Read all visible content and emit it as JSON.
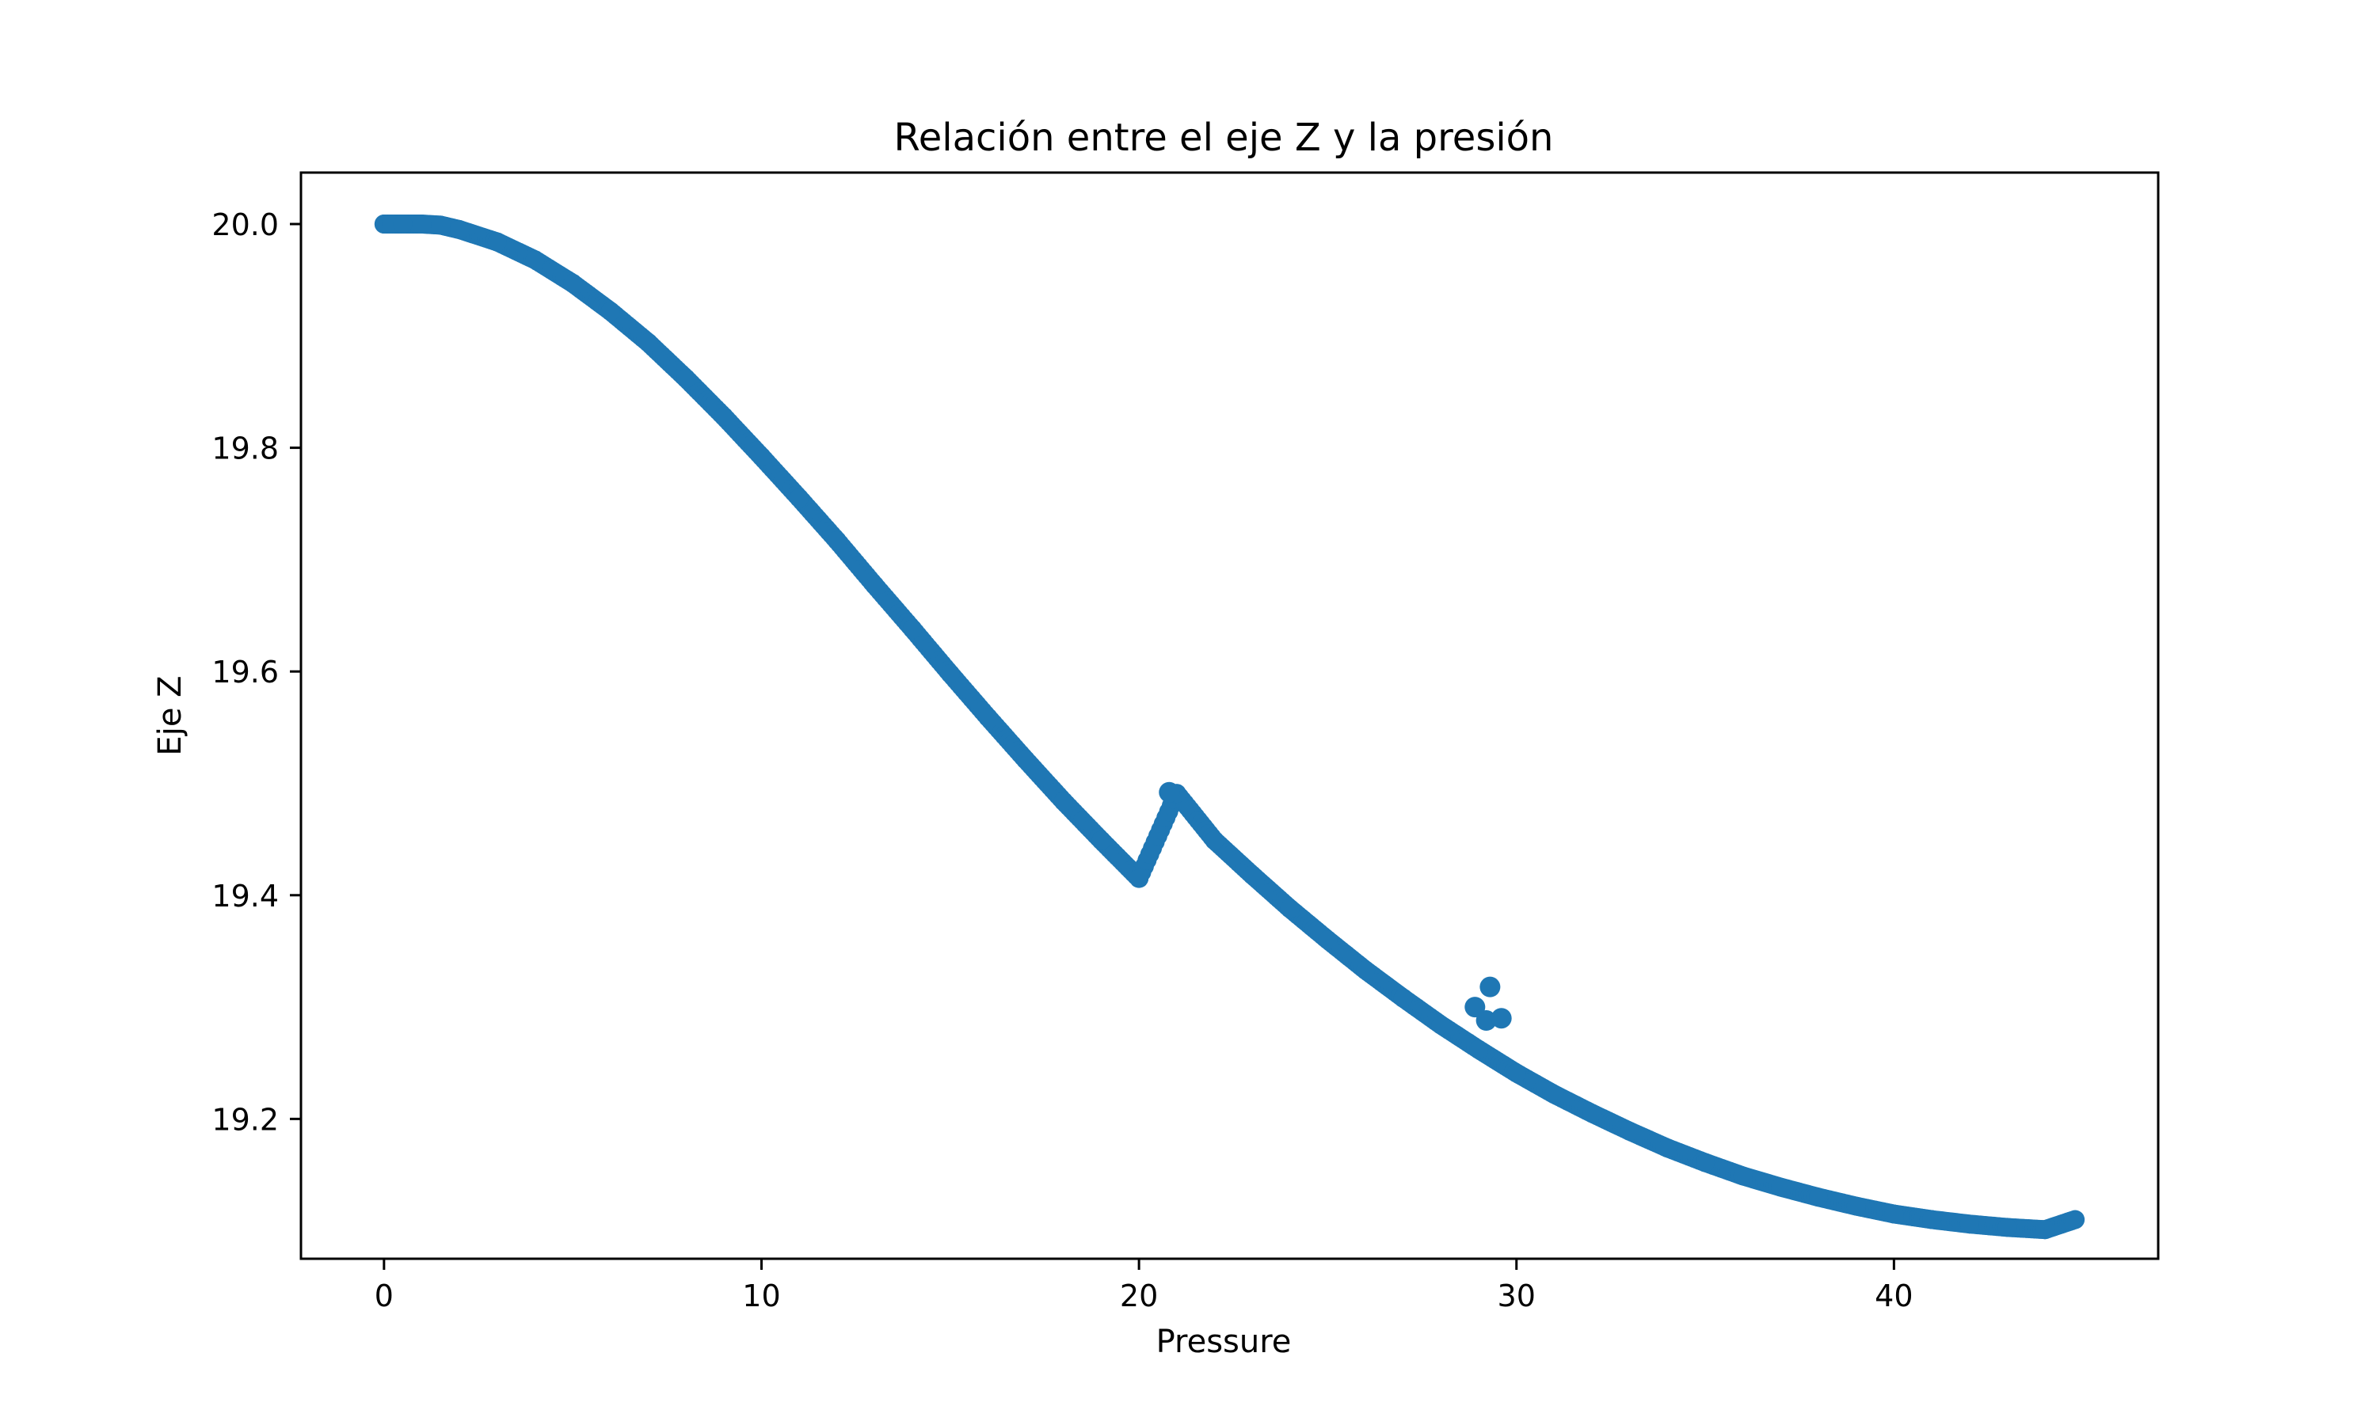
{
  "chart_data": {
    "type": "scatter",
    "title": "Relación entre el eje Z y la presión",
    "xlabel": "Pressure",
    "ylabel": "Eje Z",
    "xlim": [
      -2.2,
      47.0
    ],
    "ylim": [
      19.075,
      20.046
    ],
    "xticks": [
      0,
      10,
      20,
      30,
      40
    ],
    "xtick_labels": [
      "0",
      "10",
      "20",
      "30",
      "40"
    ],
    "yticks": [
      19.2,
      19.4,
      19.6,
      19.8,
      20.0
    ],
    "ytick_labels": [
      "19.2",
      "19.4",
      "19.6",
      "19.8",
      "20.0"
    ],
    "grid": false,
    "legend": "none",
    "series": [
      {
        "color": "#1f77b4",
        "marker": "circle",
        "points": [
          [
            0.0,
            20.0
          ],
          [
            0.2,
            20.0
          ],
          [
            0.5,
            20.0
          ],
          [
            1.0,
            20.0
          ],
          [
            1.5,
            19.999
          ],
          [
            2.0,
            19.995
          ],
          [
            3.0,
            19.984
          ],
          [
            4.0,
            19.968
          ],
          [
            5.0,
            19.947
          ],
          [
            6.0,
            19.922
          ],
          [
            7.0,
            19.894
          ],
          [
            8.0,
            19.862
          ],
          [
            9.0,
            19.828
          ],
          [
            10.0,
            19.792
          ],
          [
            11.0,
            19.755
          ],
          [
            12.0,
            19.717
          ],
          [
            13.0,
            19.677
          ],
          [
            14.0,
            19.638
          ],
          [
            15.0,
            19.598
          ],
          [
            16.0,
            19.559
          ],
          [
            17.0,
            19.521
          ],
          [
            18.0,
            19.484
          ],
          [
            19.0,
            19.449
          ],
          [
            20.0,
            19.415
          ],
          [
            21.0,
            19.491
          ],
          [
            22.0,
            19.449
          ],
          [
            23.0,
            19.418
          ],
          [
            24.0,
            19.388
          ],
          [
            25.0,
            19.36
          ],
          [
            26.0,
            19.333
          ],
          [
            27.0,
            19.308
          ],
          [
            28.0,
            19.284
          ],
          [
            29.0,
            19.262
          ],
          [
            30.0,
            19.241
          ],
          [
            31.0,
            19.222
          ],
          [
            32.0,
            19.205
          ],
          [
            33.0,
            19.189
          ],
          [
            34.0,
            19.174
          ],
          [
            35.0,
            19.161
          ],
          [
            36.0,
            19.149
          ],
          [
            37.0,
            19.139
          ],
          [
            38.0,
            19.13
          ],
          [
            39.0,
            19.122
          ],
          [
            40.0,
            19.115
          ],
          [
            41.0,
            19.11
          ],
          [
            42.0,
            19.106
          ],
          [
            43.0,
            19.103
          ],
          [
            44.0,
            19.101
          ],
          [
            44.8,
            19.11
          ]
        ]
      }
    ],
    "outliers": [
      [
        29.3,
        19.318
      ],
      [
        29.2,
        19.288
      ],
      [
        29.6,
        19.29
      ],
      [
        28.9,
        19.3
      ],
      [
        20.8,
        19.492
      ]
    ]
  }
}
